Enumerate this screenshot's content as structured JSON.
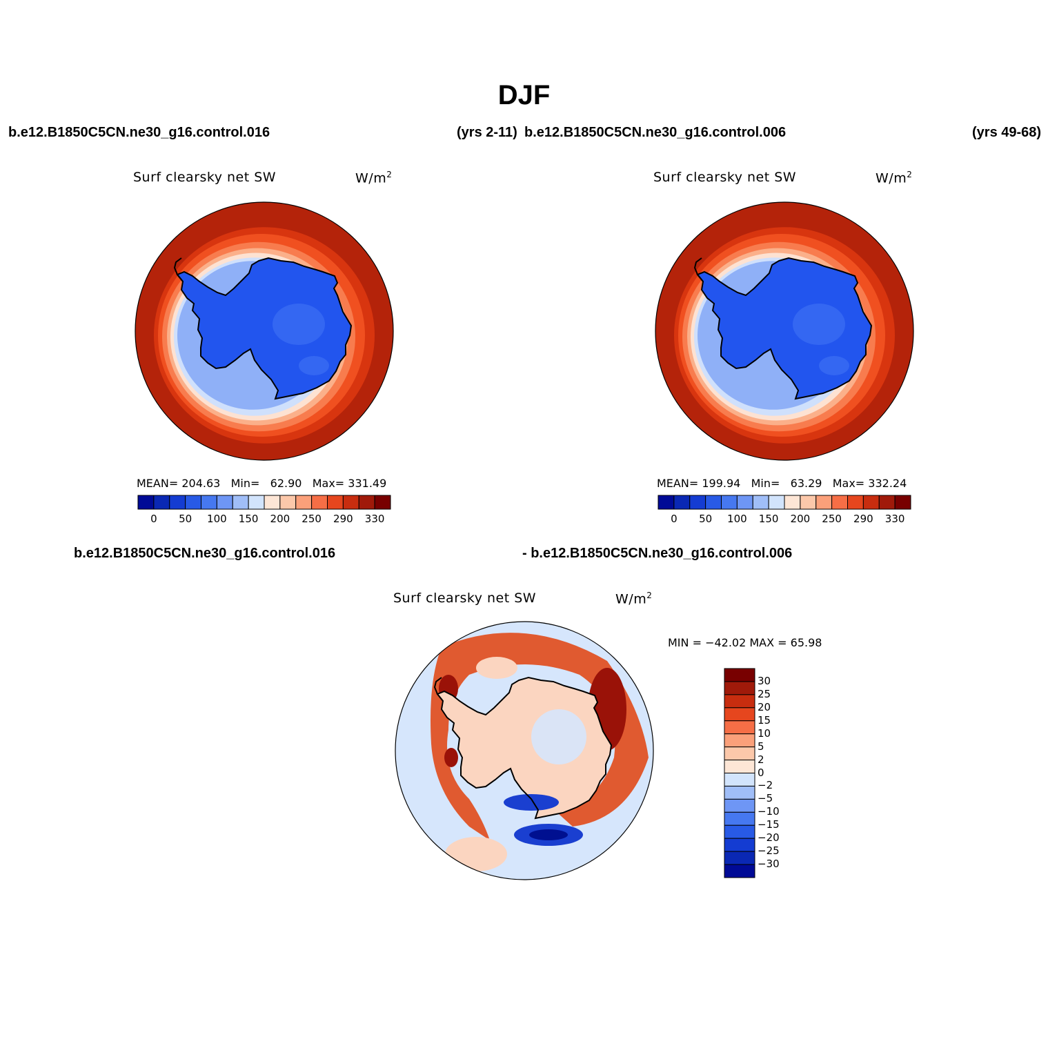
{
  "title": "DJF",
  "header": {
    "left_case": "b.e12.B1850C5CN.ne30_g16.control.016",
    "left_years": "(yrs 2-11)",
    "right_case": "b.e12.B1850C5CN.ne30_g16.control.006",
    "right_years": "(yrs 49-68)",
    "diff_case_a": "b.e12.B1850C5CN.ne30_g16.control.016",
    "diff_case_b": "- b.e12.B1850C5CN.ne30_g16.control.006"
  },
  "panels": [
    {
      "variable": "Surf clearsky net SW",
      "units": "W/m",
      "units_sup": "2",
      "stats": {
        "mean_label": "MEAN=",
        "mean": "204.63",
        "min_label": "Min=",
        "min": "62.90",
        "max_label": "Max=",
        "max": "331.49"
      }
    },
    {
      "variable": "Surf clearsky net SW",
      "units": "W/m",
      "units_sup": "2",
      "stats": {
        "mean_label": "MEAN=",
        "mean": "199.94",
        "min_label": "Min=",
        "min": "63.29",
        "max_label": "Max=",
        "max": "332.24"
      }
    },
    {
      "variable": "Surf clearsky net SW",
      "units": "W/m",
      "units_sup": "2",
      "stats_text": "MIN = −42.02  MAX =   65.98"
    }
  ],
  "colorbar_abs": {
    "tick_labels": [
      "0",
      "50",
      "100",
      "150",
      "200",
      "250",
      "290",
      "330"
    ],
    "colors": [
      "#000a96",
      "#0a28b4",
      "#143cd2",
      "#285ae6",
      "#4678f0",
      "#6e96f5",
      "#a0bef8",
      "#d2e4fc",
      "#fde6d6",
      "#fcc8aa",
      "#fba07a",
      "#f66e46",
      "#e6461e",
      "#c82d0f",
      "#a01a0a",
      "#780000"
    ]
  },
  "colorbar_diff": {
    "tick_labels": [
      "30",
      "25",
      "20",
      "15",
      "10",
      "5",
      "2",
      "0",
      "−2",
      "−5",
      "−10",
      "−15",
      "−20",
      "−25",
      "−30"
    ],
    "colors": [
      "#780000",
      "#a01a0a",
      "#c82d0f",
      "#e6461e",
      "#f66e46",
      "#fba07a",
      "#fcc8aa",
      "#fde6d6",
      "#d2e4fc",
      "#a0bef8",
      "#6e96f5",
      "#4678f0",
      "#285ae6",
      "#143cd2",
      "#0a28b4",
      "#000a96"
    ]
  },
  "map_colors": {
    "outer": "#b4230a",
    "ring1": "#d8350f",
    "ring2": "#f05020",
    "ring3": "#f87c4e",
    "ring4": "#fbb08a",
    "ring5": "#fde2d2",
    "ring6": "#cfe0fc",
    "ring7": "#8fb0f7",
    "land": "#2255ee",
    "land2": "#3a6cf2",
    "diff_bg": "#d6e6fc",
    "diff_pos": "#e05a30",
    "diff_pos_strong": "#9a1208",
    "diff_neg": "#1a3fd0",
    "diff_light_pos": "#fbd5c0"
  }
}
